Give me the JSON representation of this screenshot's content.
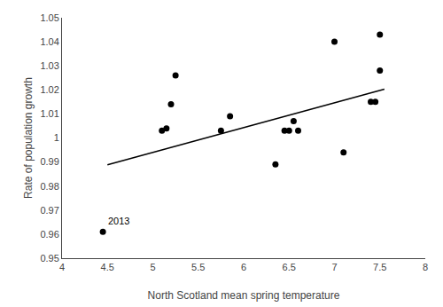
{
  "chart_data": {
    "type": "scatter",
    "xlabel": "North Scotland mean spring temperature",
    "ylabel": "Rate of population growth",
    "series": [
      {
        "type": "scatter",
        "marker": "circle",
        "color": "#000000",
        "x": [
          4.45,
          5.1,
          5.15,
          5.2,
          5.25,
          5.75,
          5.85,
          6.35,
          6.45,
          6.5,
          6.55,
          6.6,
          7.0,
          7.1,
          7.4,
          7.45,
          7.5,
          7.5
        ],
        "values": [
          0.961,
          1.003,
          1.004,
          1.014,
          1.026,
          1.003,
          1.009,
          0.989,
          1.003,
          1.003,
          1.007,
          1.003,
          1.04,
          0.994,
          1.015,
          1.015,
          1.028,
          1.043
        ]
      },
      {
        "type": "line",
        "line_style": "solid",
        "color": "#000000",
        "x": [
          4.5,
          7.55
        ],
        "values": [
          0.98885,
          1.020265
        ]
      }
    ],
    "annotations": [
      {
        "text": "2013",
        "x": 4.45,
        "y": 0.961
      }
    ],
    "xlim": [
      4.0,
      8.0
    ],
    "ylim": [
      0.95,
      1.05
    ],
    "xticks": [
      4,
      4.5,
      5,
      5.5,
      6,
      6.5,
      7,
      7.5,
      8
    ],
    "yticks": [
      0.95,
      0.96,
      0.97,
      0.98,
      0.99,
      1,
      1.01,
      1.02,
      1.03,
      1.04,
      1.05
    ],
    "grid": false
  }
}
